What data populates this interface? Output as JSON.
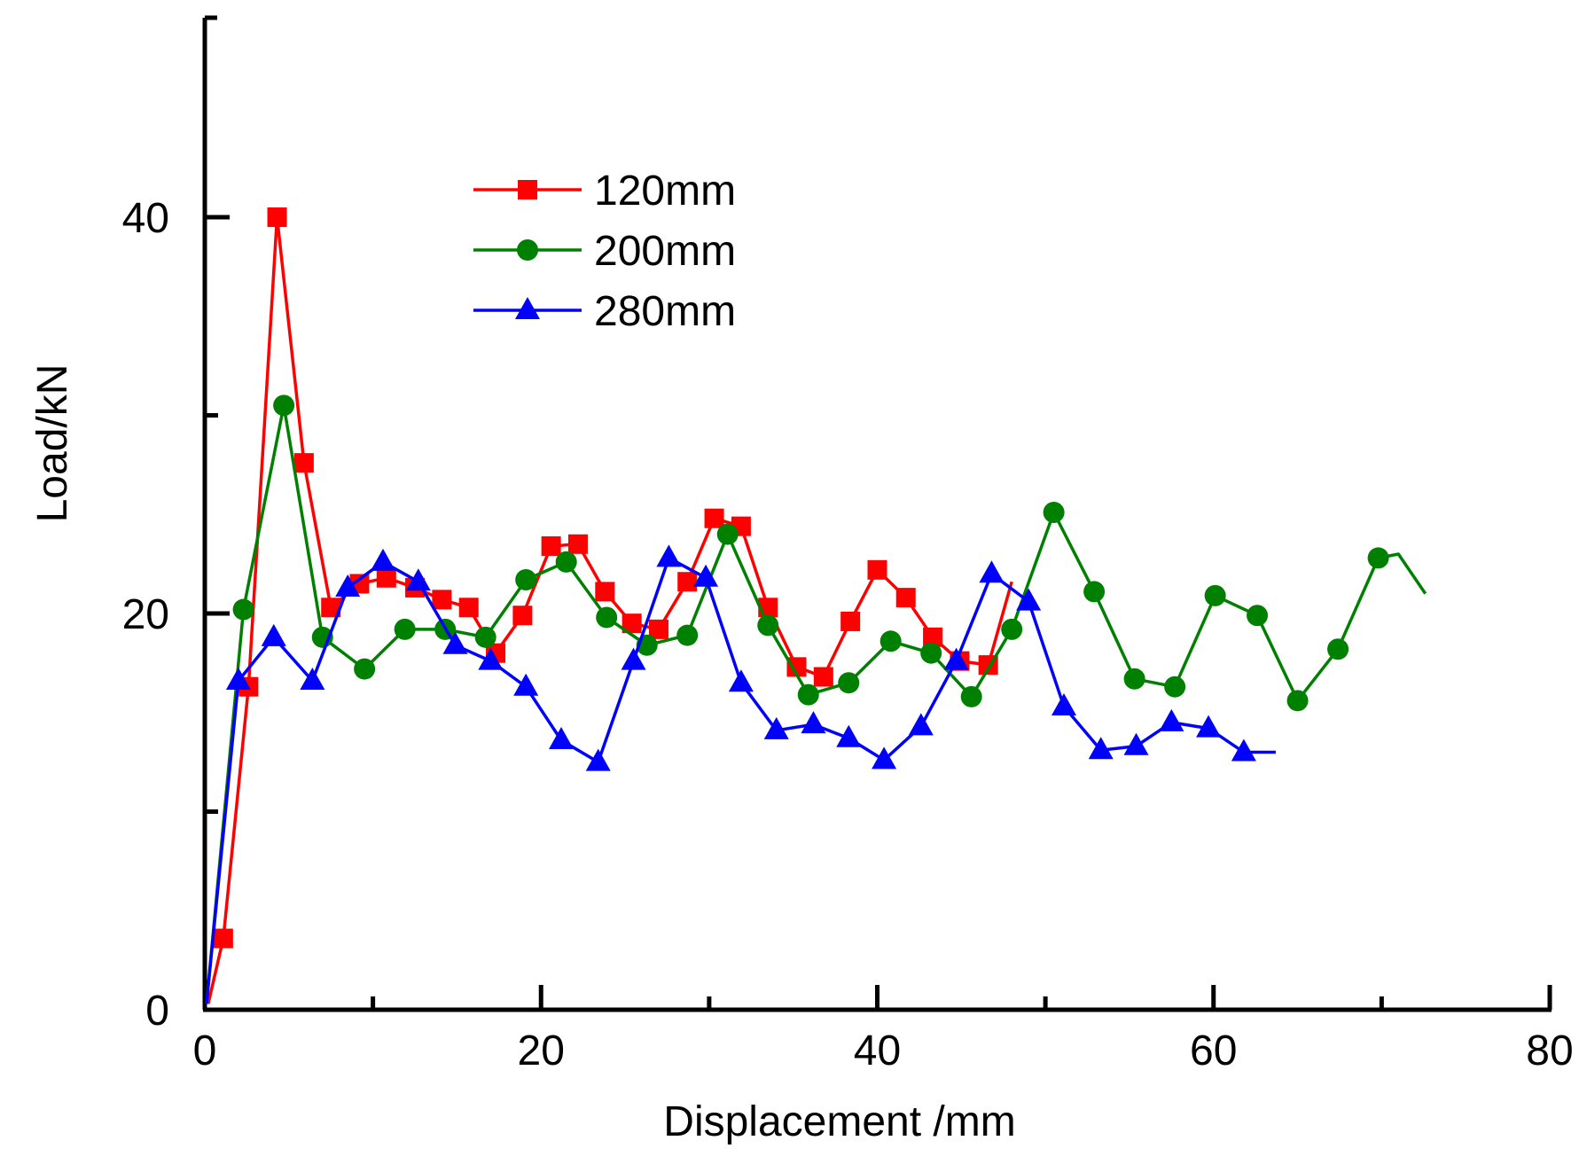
{
  "chart_data": {
    "type": "line",
    "title": "",
    "xlabel": "Displacement /mm",
    "ylabel": "Load/kN",
    "xlim": [
      0,
      80
    ],
    "ylim": [
      0,
      50
    ],
    "xticks": [
      0,
      20,
      40,
      60,
      80
    ],
    "yticks": [
      0,
      20,
      40
    ],
    "x_minor_ticks": [
      10,
      30,
      50,
      70
    ],
    "y_minor_ticks": [
      10,
      30
    ],
    "legend_position": "top-center",
    "grid": false,
    "series": [
      {
        "name": "120mm",
        "color": "#ff0000",
        "marker": "square",
        "x": [
          0.2,
          1.1,
          2.6,
          4.3,
          5.9,
          7.5,
          9.2,
          10.8,
          12.5,
          14.1,
          15.7,
          17.3,
          18.9,
          20.6,
          22.2,
          23.8,
          25.4,
          27.0,
          28.7,
          30.3,
          31.9,
          33.5,
          35.2,
          36.8,
          38.4,
          40.0,
          41.7,
          43.3,
          44.9,
          46.6,
          48.0
        ],
        "y": [
          0.3,
          3.6,
          16.3,
          40.0,
          27.6,
          20.3,
          21.5,
          21.8,
          21.3,
          20.7,
          20.3,
          18.0,
          19.9,
          23.4,
          23.5,
          21.1,
          19.5,
          19.2,
          21.6,
          24.8,
          24.4,
          20.3,
          17.3,
          16.8,
          19.6,
          22.2,
          20.8,
          18.8,
          17.6,
          17.4,
          21.6
        ],
        "markers_from": 1,
        "markers_to": 29
      },
      {
        "name": "200mm",
        "color": "#008000",
        "marker": "circle",
        "x": [
          0.1,
          2.3,
          4.7,
          7.0,
          9.5,
          11.9,
          14.3,
          16.7,
          19.1,
          21.5,
          23.9,
          26.3,
          28.7,
          31.1,
          33.5,
          35.9,
          38.3,
          40.8,
          43.2,
          45.6,
          48.0,
          50.5,
          52.9,
          55.3,
          57.7,
          60.1,
          62.6,
          65.0,
          67.4,
          69.8,
          71.0,
          72.6
        ],
        "y": [
          0.3,
          20.2,
          30.5,
          18.8,
          17.2,
          19.2,
          19.2,
          18.8,
          21.7,
          22.6,
          19.8,
          18.4,
          18.9,
          24.0,
          19.4,
          15.9,
          16.5,
          18.6,
          18.0,
          15.8,
          19.2,
          25.1,
          21.1,
          16.7,
          16.3,
          20.9,
          19.9,
          15.6,
          18.2,
          22.8,
          23.0,
          21.0
        ],
        "markers_from": 1,
        "markers_to": 29
      },
      {
        "name": "280mm",
        "color": "#0000ff",
        "marker": "triangle",
        "x": [
          0.1,
          2.0,
          4.1,
          6.4,
          8.5,
          10.6,
          12.7,
          14.9,
          17.0,
          19.1,
          21.2,
          23.4,
          25.5,
          27.6,
          29.8,
          31.9,
          34.0,
          36.2,
          38.3,
          40.4,
          42.6,
          44.7,
          46.8,
          49.0,
          51.1,
          53.3,
          55.4,
          57.5,
          59.7,
          61.8,
          63.7
        ],
        "y": [
          0.3,
          16.6,
          18.8,
          16.6,
          21.3,
          22.6,
          21.6,
          18.4,
          17.6,
          16.3,
          13.6,
          12.5,
          17.6,
          22.8,
          21.8,
          16.5,
          14.1,
          14.4,
          13.7,
          12.6,
          14.3,
          17.6,
          22.0,
          20.6,
          15.3,
          13.1,
          13.3,
          14.5,
          14.2,
          13.0,
          13.0
        ],
        "markers_from": 1,
        "markers_to": 29
      }
    ]
  }
}
